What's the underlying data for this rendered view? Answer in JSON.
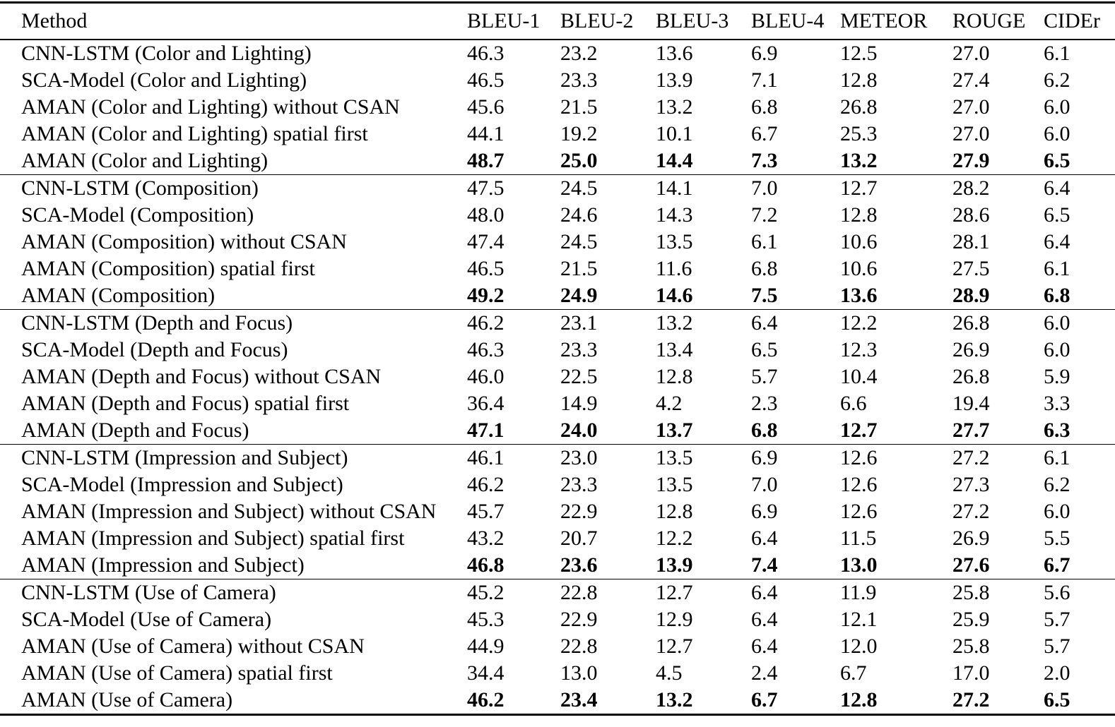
{
  "table": {
    "columns": [
      "Method",
      "BLEU-1",
      "BLEU-2",
      "BLEU-3",
      "BLEU-4",
      "METEOR",
      "ROUGE",
      "CIDEr"
    ],
    "groups": [
      {
        "aspect": "Color and Lighting",
        "rows": [
          {
            "method": "CNN-LSTM (Color and Lighting)",
            "values": [
              "46.3",
              "23.2",
              "13.6",
              "6.9",
              "12.5",
              "27.0",
              "6.1"
            ],
            "bold": false
          },
          {
            "method": "SCA-Model (Color and Lighting)",
            "values": [
              "46.5",
              "23.3",
              "13.9",
              "7.1",
              "12.8",
              "27.4",
              "6.2"
            ],
            "bold": false
          },
          {
            "method": "AMAN (Color and Lighting) without CSAN",
            "values": [
              "45.6",
              "21.5",
              "13.2",
              "6.8",
              "26.8",
              "27.0",
              "6.0"
            ],
            "bold": false
          },
          {
            "method": "AMAN (Color and Lighting) spatial first",
            "values": [
              "44.1",
              "19.2",
              "10.1",
              "6.7",
              "25.3",
              "27.0",
              "6.0"
            ],
            "bold": false
          },
          {
            "method": "AMAN (Color and Lighting)",
            "values": [
              "48.7",
              "25.0",
              "14.4",
              "7.3",
              "13.2",
              "27.9",
              "6.5"
            ],
            "bold": true
          }
        ]
      },
      {
        "aspect": "Composition",
        "rows": [
          {
            "method": "CNN-LSTM (Composition)",
            "values": [
              "47.5",
              "24.5",
              "14.1",
              "7.0",
              "12.7",
              "28.2",
              "6.4"
            ],
            "bold": false
          },
          {
            "method": "SCA-Model (Composition)",
            "values": [
              "48.0",
              "24.6",
              "14.3",
              "7.2",
              "12.8",
              "28.6",
              "6.5"
            ],
            "bold": false
          },
          {
            "method": "AMAN (Composition) without CSAN",
            "values": [
              "47.4",
              "24.5",
              "13.5",
              "6.1",
              "10.6",
              "28.1",
              "6.4"
            ],
            "bold": false
          },
          {
            "method": "AMAN (Composition) spatial first",
            "values": [
              "46.5",
              "21.5",
              "11.6",
              "6.8",
              "10.6",
              "27.5",
              "6.1"
            ],
            "bold": false
          },
          {
            "method": "AMAN (Composition)",
            "values": [
              "49.2",
              "24.9",
              "14.6",
              "7.5",
              "13.6",
              "28.9",
              "6.8"
            ],
            "bold": true
          }
        ]
      },
      {
        "aspect": "Depth and Focus",
        "rows": [
          {
            "method": "CNN-LSTM (Depth and Focus)",
            "values": [
              "46.2",
              "23.1",
              "13.2",
              "6.4",
              "12.2",
              "26.8",
              "6.0"
            ],
            "bold": false
          },
          {
            "method": "SCA-Model (Depth and Focus)",
            "values": [
              "46.3",
              "23.3",
              "13.4",
              "6.5",
              "12.3",
              "26.9",
              "6.0"
            ],
            "bold": false
          },
          {
            "method": "AMAN (Depth and Focus) without CSAN",
            "values": [
              "46.0",
              "22.5",
              "12.8",
              "5.7",
              "10.4",
              "26.8",
              "5.9"
            ],
            "bold": false
          },
          {
            "method": "AMAN (Depth and Focus) spatial first",
            "values": [
              "36.4",
              "14.9",
              "4.2",
              "2.3",
              "6.6",
              "19.4",
              "3.3"
            ],
            "bold": false
          },
          {
            "method": "AMAN (Depth and Focus)",
            "values": [
              "47.1",
              "24.0",
              "13.7",
              "6.8",
              "12.7",
              "27.7",
              "6.3"
            ],
            "bold": true
          }
        ]
      },
      {
        "aspect": "Impression and Subject",
        "rows": [
          {
            "method": "CNN-LSTM (Impression and Subject)",
            "values": [
              "46.1",
              "23.0",
              "13.5",
              "6.9",
              "12.6",
              "27.2",
              "6.1"
            ],
            "bold": false
          },
          {
            "method": "SCA-Model (Impression and Subject)",
            "values": [
              "46.2",
              "23.3",
              "13.5",
              "7.0",
              "12.6",
              "27.3",
              "6.2"
            ],
            "bold": false
          },
          {
            "method": "AMAN (Impression and Subject) without CSAN",
            "values": [
              "45.7",
              "22.9",
              "12.8",
              "6.9",
              "12.6",
              "27.2",
              "6.0"
            ],
            "bold": false
          },
          {
            "method": "AMAN (Impression and Subject) spatial first",
            "values": [
              "43.2",
              "20.7",
              "12.2",
              "6.4",
              "11.5",
              "26.9",
              "5.5"
            ],
            "bold": false
          },
          {
            "method": "AMAN (Impression and Subject)",
            "values": [
              "46.8",
              "23.6",
              "13.9",
              "7.4",
              "13.0",
              "27.6",
              "6.7"
            ],
            "bold": true
          }
        ]
      },
      {
        "aspect": "Use of Camera",
        "rows": [
          {
            "method": "CNN-LSTM (Use of Camera)",
            "values": [
              "45.2",
              "22.8",
              "12.7",
              "6.4",
              "11.9",
              "25.8",
              "5.6"
            ],
            "bold": false
          },
          {
            "method": "SCA-Model (Use of Camera)",
            "values": [
              "45.3",
              "22.9",
              "12.9",
              "6.4",
              "12.1",
              "25.9",
              "5.7"
            ],
            "bold": false
          },
          {
            "method": "AMAN (Use of Camera) without CSAN",
            "values": [
              "44.9",
              "22.8",
              "12.7",
              "6.4",
              "12.0",
              "25.8",
              "5.7"
            ],
            "bold": false
          },
          {
            "method": "AMAN (Use of Camera) spatial first",
            "values": [
              "34.4",
              "13.0",
              "4.5",
              "2.4",
              "6.7",
              "17.0",
              "2.0"
            ],
            "bold": false
          },
          {
            "method": "AMAN (Use of Camera)",
            "values": [
              "46.2",
              "23.4",
              "13.2",
              "6.7",
              "12.8",
              "27.2",
              "6.5"
            ],
            "bold": true
          }
        ]
      }
    ]
  }
}
